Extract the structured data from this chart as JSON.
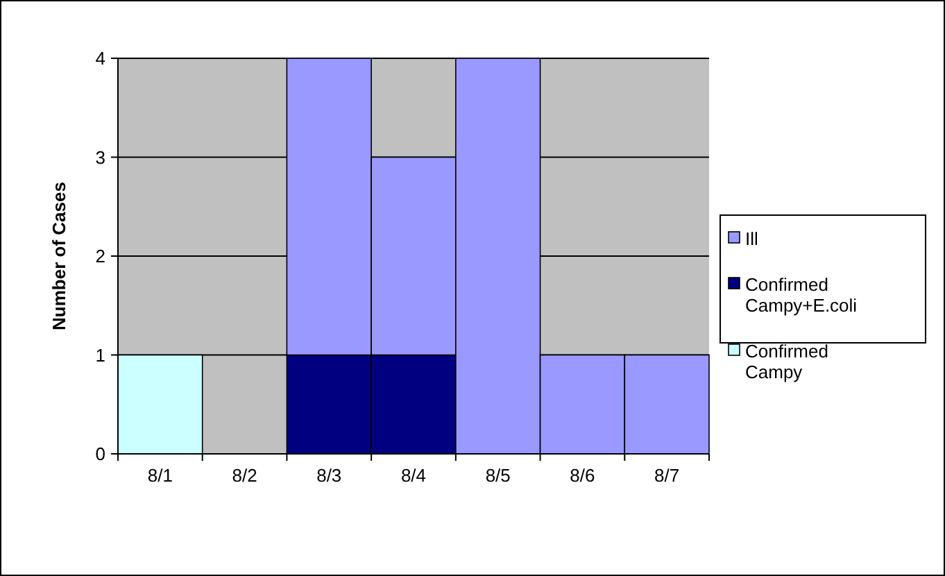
{
  "chart_data": {
    "type": "bar",
    "stacked": true,
    "ylabel": "Number of Cases",
    "categories": [
      "8/1",
      "8/2",
      "8/3",
      "8/4",
      "8/5",
      "8/6",
      "8/7"
    ],
    "series": [
      {
        "name": "Confirmed Campy",
        "color": "#ccffff",
        "values": [
          1,
          0,
          0,
          0,
          0,
          0,
          0
        ]
      },
      {
        "name": "Confirmed Campy+E.coli",
        "color": "#000080",
        "values": [
          0,
          0,
          1,
          1,
          0,
          0,
          0
        ]
      },
      {
        "name": "Ill",
        "color": "#9999ff",
        "values": [
          0,
          0,
          3,
          2,
          4,
          1,
          1
        ]
      }
    ],
    "ylim": [
      0,
      4
    ],
    "yticks": [
      0,
      1,
      2,
      3,
      4
    ],
    "grid": "y",
    "legend": "right"
  }
}
